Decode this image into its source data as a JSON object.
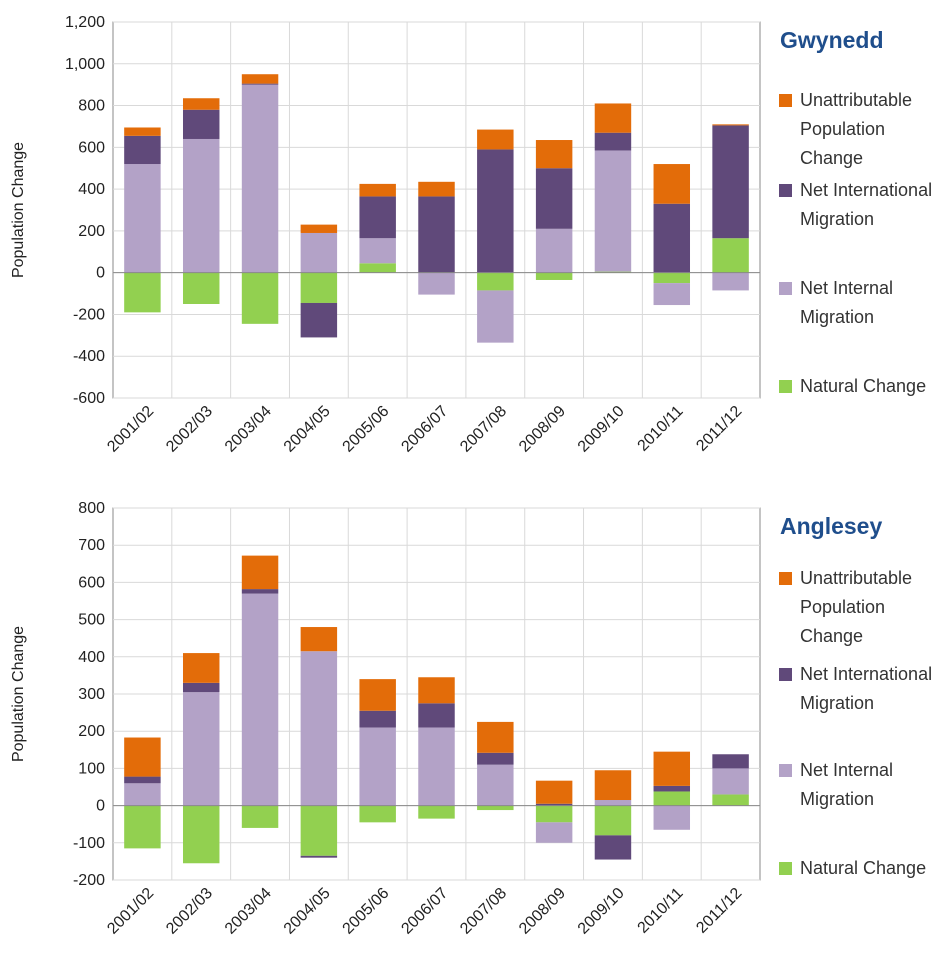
{
  "chart_data": [
    {
      "type": "bar",
      "stacked": true,
      "title": "Gwynedd",
      "y_label": "Population Change",
      "categories": [
        "2001/02",
        "2002/03",
        "2003/04",
        "2004/05",
        "2005/06",
        "2006/07",
        "2007/08",
        "2008/09",
        "2009/10",
        "2010/11",
        "2011/12"
      ],
      "series": [
        {
          "name": "Unattributable Population Change",
          "color": "#e36c09",
          "values": [
            40,
            55,
            45,
            40,
            60,
            70,
            95,
            135,
            140,
            190,
            5
          ]
        },
        {
          "name": "Net International Migration",
          "color": "#60497a",
          "values": [
            135,
            140,
            5,
            -165,
            200,
            365,
            590,
            290,
            85,
            330,
            540
          ]
        },
        {
          "name": "Net Internal Migration",
          "color": "#b3a2c7",
          "values": [
            520,
            640,
            900,
            190,
            120,
            -105,
            -250,
            210,
            580,
            -105,
            -85
          ]
        },
        {
          "name": "Natural Change",
          "color": "#92d050",
          "values": [
            -190,
            -150,
            -245,
            -145,
            45,
            0,
            -85,
            -35,
            5,
            -50,
            165
          ]
        }
      ],
      "ylim": [
        -600,
        1200
      ],
      "yticks": [
        -600,
        -400,
        -200,
        0,
        200,
        400,
        600,
        800,
        {
          "value": 1000,
          "label": "1,000"
        },
        {
          "value": 1200,
          "label": "1,200"
        }
      ],
      "grid": true
    },
    {
      "type": "bar",
      "stacked": true,
      "title": "Anglesey",
      "y_label": "Population Change",
      "categories": [
        "2001/02",
        "2002/03",
        "2003/04",
        "2004/05",
        "2005/06",
        "2006/07",
        "2007/08",
        "2008/09",
        "2009/10",
        "2010/11",
        "2011/12"
      ],
      "series": [
        {
          "name": "Unattributable Population Change",
          "color": "#e36c09",
          "values": [
            105,
            80,
            90,
            65,
            85,
            70,
            83,
            62,
            80,
            92,
            0
          ]
        },
        {
          "name": "Net International Migration",
          "color": "#60497a",
          "values": [
            18,
            25,
            12,
            -5,
            45,
            65,
            32,
            5,
            -65,
            15,
            38
          ]
        },
        {
          "name": "Net Internal Migration",
          "color": "#b3a2c7",
          "values": [
            60,
            305,
            570,
            415,
            210,
            210,
            110,
            -55,
            15,
            -65,
            70
          ]
        },
        {
          "name": "Natural Change",
          "color": "#92d050",
          "values": [
            -115,
            -155,
            -60,
            -135,
            -45,
            -35,
            -12,
            -45,
            -80,
            38,
            30
          ]
        }
      ],
      "ylim": [
        -200,
        800
      ],
      "yticks": [
        -200,
        -100,
        0,
        100,
        200,
        300,
        400,
        500,
        600,
        700,
        800
      ],
      "grid": true
    }
  ]
}
